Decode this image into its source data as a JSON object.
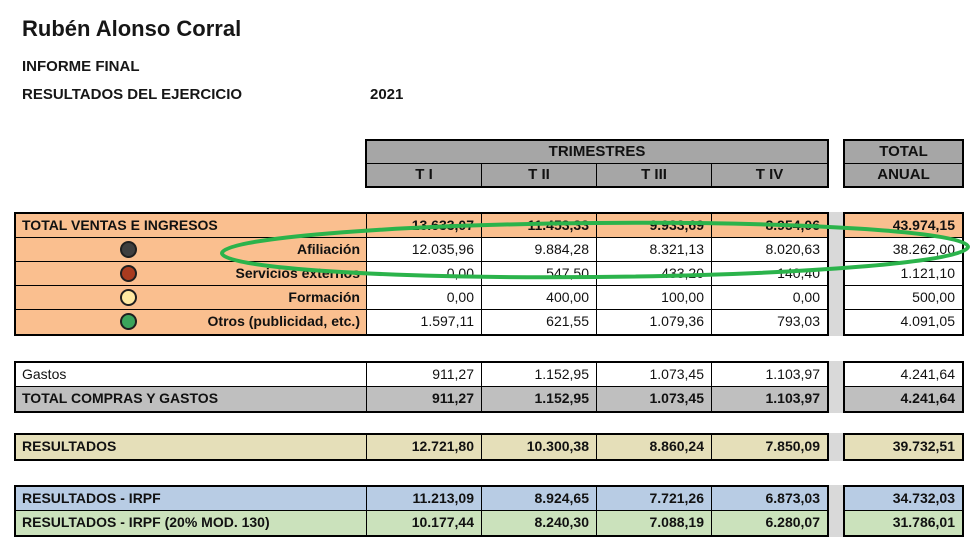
{
  "header": {
    "author": "Rubén Alonso Corral",
    "line1": "INFORME FINAL",
    "line2": "RESULTADOS DEL EJERCICIO",
    "year": "2021"
  },
  "table": {
    "quarters_title": "TRIMESTRES",
    "quarter_columns": [
      "T I",
      "T II",
      "T III",
      "T IV"
    ],
    "total_title": "TOTAL",
    "total_subtitle": "ANUAL",
    "sections": [
      {
        "id": "ingresos",
        "rows": [
          {
            "label": "TOTAL VENTAS E INGRESOS",
            "style": "orange-total",
            "align": "left",
            "values": [
              "13.633,07",
              "11.453,33",
              "9.933,69",
              "8.954,06"
            ],
            "total": "43.974,15"
          },
          {
            "label": "Afiliación",
            "style": "orange-detail",
            "align": "right",
            "icon": {
              "name": "afiliacion-dot-icon",
              "color": "#3F3F3F"
            },
            "values": [
              "12.035,96",
              "9.884,28",
              "8.321,13",
              "8.020,63"
            ],
            "total": "38.262,00"
          },
          {
            "label": "Servicios externos",
            "style": "orange-detail",
            "align": "right",
            "icon": {
              "name": "servicios-externos-dot-icon",
              "color": "#A93B1F"
            },
            "values": [
              "0,00",
              "547,50",
              "433,20",
              "140,40"
            ],
            "total": "1.121,10"
          },
          {
            "label": "Formación",
            "style": "orange-detail",
            "align": "right",
            "icon": {
              "name": "formacion-dot-icon",
              "color": "#FFE9A2"
            },
            "values": [
              "0,00",
              "400,00",
              "100,00",
              "0,00"
            ],
            "total": "500,00"
          },
          {
            "label": "Otros (publicidad, etc.)",
            "style": "orange-detail",
            "align": "right",
            "icon": {
              "name": "otros-dot-icon",
              "color": "#3BA45B"
            },
            "values": [
              "1.597,11",
              "621,55",
              "1.079,36",
              "793,03"
            ],
            "total": "4.091,05"
          }
        ]
      },
      {
        "id": "gastos",
        "rows": [
          {
            "label": "Gastos",
            "style": "plain",
            "align": "left",
            "values": [
              "911,27",
              "1.152,95",
              "1.073,45",
              "1.103,97"
            ],
            "total": "4.241,64"
          },
          {
            "label": "TOTAL COMPRAS Y GASTOS",
            "style": "gray-total",
            "align": "left",
            "values": [
              "911,27",
              "1.152,95",
              "1.073,45",
              "1.103,97"
            ],
            "total": "4.241,64"
          }
        ]
      },
      {
        "id": "resultados",
        "rows": [
          {
            "label": "RESULTADOS",
            "style": "tan-total",
            "align": "left",
            "values": [
              "12.721,80",
              "10.300,38",
              "8.860,24",
              "7.850,09"
            ],
            "total": "39.732,51"
          }
        ]
      },
      {
        "id": "irpf",
        "rows": [
          {
            "label": "RESULTADOS - IRPF",
            "style": "blue-total",
            "align": "left",
            "values": [
              "11.213,09",
              "8.924,65",
              "7.721,26",
              "6.873,03"
            ],
            "total": "34.732,03"
          },
          {
            "label": "RESULTADOS - IRPF (20% MOD. 130)",
            "style": "green-total",
            "align": "left",
            "values": [
              "10.177,44",
              "8.240,30",
              "7.088,19",
              "6.280,07"
            ],
            "total": "31.786,01"
          }
        ]
      }
    ]
  },
  "annotation": {
    "shape": "ellipse",
    "color": "#2BB34B",
    "note": "green hand-drawn oval highlighting the Afiliación row"
  },
  "colors": {
    "header_gray": "#A6A6A6",
    "total_gray": "#BFBFBF",
    "orange": "#FABF8F",
    "tan": "#E5DFB9",
    "blue": "#B8CCE4",
    "green": "#CBE2BC",
    "strip": "#D9D9D9"
  }
}
